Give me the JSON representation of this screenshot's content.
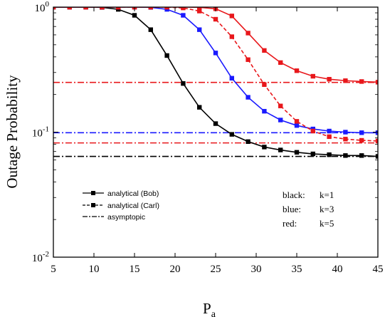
{
  "chart_data": {
    "type": "line",
    "xlabel": "P",
    "xlabel_sub": "a",
    "ylabel": "Outage Probability",
    "xlim": [
      5,
      45
    ],
    "ylim": [
      0.01,
      1
    ],
    "yscale": "log",
    "xticks": [
      5,
      10,
      15,
      20,
      25,
      30,
      35,
      40,
      45
    ],
    "yticks": [
      {
        "value": 1,
        "base": "10",
        "exp": "0"
      },
      {
        "value": 0.1,
        "base": "10",
        "exp": "-1"
      },
      {
        "value": 0.01,
        "base": "10",
        "exp": "-2"
      }
    ],
    "grid": false,
    "legend": {
      "placement": "bottom-left",
      "entries": [
        {
          "label": "analytical (Bob)",
          "style": "solid"
        },
        {
          "label": "analytical (Carl)",
          "style": "dashed"
        },
        {
          "label": "asymptopic",
          "style": "dashdot"
        }
      ]
    },
    "notes": [
      {
        "color_name": "black:",
        "k_text": "k=1"
      },
      {
        "color_name": "blue:",
        "k_text": "k=3"
      },
      {
        "color_name": "red:",
        "k_text": "k=5"
      }
    ],
    "series": [
      {
        "color": "#000000",
        "style": "solid",
        "marker": "square",
        "x": [
          5,
          7,
          9,
          11,
          13,
          15,
          17,
          19,
          21,
          23,
          25,
          27,
          29,
          31,
          33,
          35,
          37,
          39,
          41,
          43,
          45
        ],
        "y": [
          1.0,
          1.0,
          1.0,
          0.995,
          0.96,
          0.86,
          0.66,
          0.41,
          0.245,
          0.158,
          0.117,
          0.096,
          0.084,
          0.076,
          0.072,
          0.069,
          0.067,
          0.066,
          0.065,
          0.065,
          0.064
        ]
      },
      {
        "color": "#1a1aff",
        "style": "solid",
        "marker": "square",
        "x": [
          5,
          7,
          9,
          11,
          13,
          15,
          17,
          19,
          21,
          23,
          25,
          27,
          29,
          31,
          33,
          35,
          37,
          39,
          41,
          43,
          45
        ],
        "y": [
          1.0,
          1.0,
          1.0,
          1.0,
          1.0,
          1.0,
          0.995,
          0.96,
          0.86,
          0.66,
          0.43,
          0.27,
          0.19,
          0.147,
          0.125,
          0.113,
          0.106,
          0.102,
          0.1,
          0.099,
          0.099
        ]
      },
      {
        "color": "#e8171b",
        "style": "dashed",
        "marker": "square",
        "x": [
          5,
          7,
          9,
          11,
          13,
          15,
          17,
          19,
          21,
          23,
          25,
          27,
          29,
          31,
          33,
          35,
          37,
          39,
          41,
          43,
          45
        ],
        "y": [
          1.0,
          1.0,
          1.0,
          1.0,
          1.0,
          1.0,
          1.0,
          1.0,
          0.985,
          0.93,
          0.8,
          0.58,
          0.38,
          0.24,
          0.162,
          0.122,
          0.102,
          0.092,
          0.088,
          0.086,
          0.085
        ]
      },
      {
        "color": "#e8171b",
        "style": "solid",
        "marker": "square",
        "x": [
          5,
          7,
          9,
          11,
          13,
          15,
          17,
          19,
          21,
          23,
          25,
          27,
          29,
          31,
          33,
          35,
          37,
          39,
          41,
          43,
          45
        ],
        "y": [
          1.0,
          1.0,
          1.0,
          1.0,
          1.0,
          1.0,
          1.0,
          1.0,
          1.0,
          0.995,
          0.97,
          0.85,
          0.62,
          0.45,
          0.36,
          0.31,
          0.28,
          0.265,
          0.258,
          0.254,
          0.251
        ]
      },
      {
        "color": "#000000",
        "style": "dashdot",
        "marker": "none",
        "x": [
          5,
          45
        ],
        "y": [
          0.064,
          0.064
        ]
      },
      {
        "color": "#1a1aff",
        "style": "dashdot",
        "marker": "none",
        "x": [
          5,
          45
        ],
        "y": [
          0.099,
          0.099
        ]
      },
      {
        "color": "#e8171b",
        "style": "dashdot",
        "marker": "none",
        "x": [
          5,
          45
        ],
        "y": [
          0.082,
          0.082
        ]
      },
      {
        "color": "#e8171b",
        "style": "dashdot",
        "marker": "none",
        "x": [
          5,
          45
        ],
        "y": [
          0.25,
          0.25
        ]
      }
    ]
  }
}
